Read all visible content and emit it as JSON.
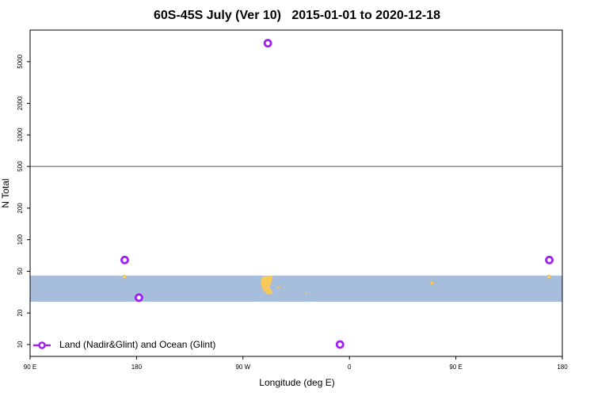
{
  "chart_data": {
    "type": "scatter",
    "title": "60S-45S July (Ver 10)   2015-01-01 to 2020-12-18",
    "xlabel": "Longitude (deg E)",
    "ylabel": "N Total",
    "xlim": [
      90,
      540
    ],
    "xticks": [
      {
        "value": 90,
        "label": "90 E"
      },
      180,
      {
        "value": 270,
        "label": "90 W"
      },
      {
        "value": 360,
        "label": "0"
      },
      {
        "value": 450,
        "label": "90 E"
      },
      {
        "value": 540,
        "label": "180"
      }
    ],
    "ylim": [
      7.7,
      10000
    ],
    "ylog": true,
    "yticks": [
      10,
      20,
      50,
      100,
      200,
      500,
      1000,
      2000,
      5000
    ],
    "hline": 500,
    "band": [
      25.6,
      45.4
    ],
    "band_color": "#a7bddc",
    "legend": "bottom-left",
    "series": [
      {
        "name": "Land (Nadir&Glint) and Ocean (Glint)",
        "color": "#a020f0",
        "x": [
          170,
          182,
          291,
          352,
          529
        ],
        "values": [
          64,
          28,
          7500,
          10,
          64
        ]
      }
    ]
  }
}
